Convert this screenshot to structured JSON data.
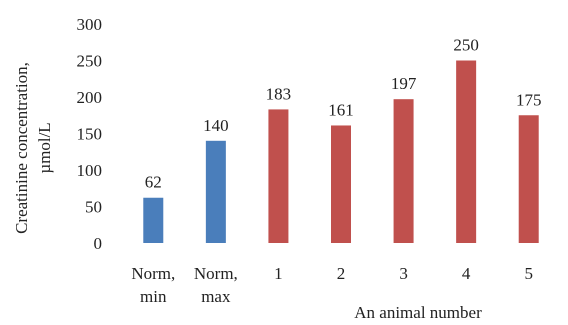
{
  "chart_data": {
    "type": "bar",
    "categories": [
      [
        "Norm,",
        "min"
      ],
      [
        "Norm,",
        "max"
      ],
      [
        "1"
      ],
      [
        "2"
      ],
      [
        "3"
      ],
      [
        "4"
      ],
      [
        "5"
      ]
    ],
    "values": [
      62,
      140,
      183,
      161,
      197,
      250,
      175
    ],
    "data_labels": [
      "62",
      "140",
      "183",
      "161",
      "197",
      "250",
      "175"
    ],
    "bar_colors": [
      "#4a7ebb",
      "#4a7ebb",
      "#c0504d",
      "#c0504d",
      "#c0504d",
      "#c0504d",
      "#c0504d"
    ],
    "ylabel_lines": [
      "Creatinine concentration,",
      "µmol/L"
    ],
    "xlabel": "An animal  number",
    "ylim": [
      0,
      300
    ],
    "yticks": [
      0,
      50,
      100,
      150,
      200,
      250,
      300
    ],
    "grid": false
  }
}
